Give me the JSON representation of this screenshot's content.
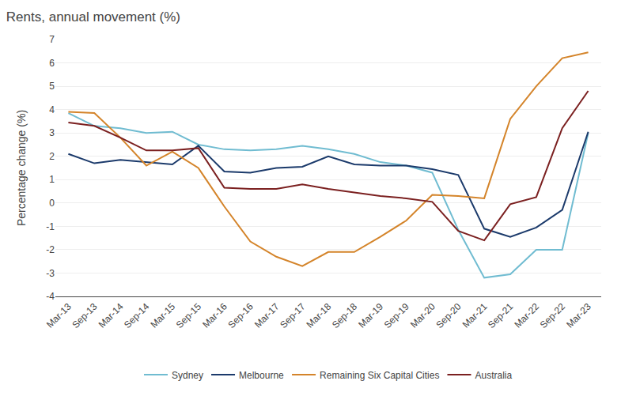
{
  "chart_data": {
    "type": "line",
    "title": "Rents, annual movement (%)",
    "ylabel": "Percentage change (%)",
    "categories": [
      "Mar-13",
      "Sep-13",
      "Mar-14",
      "Sep-14",
      "Mar-15",
      "Sep-15",
      "Mar-16",
      "Sep-16",
      "Mar-17",
      "Sep-17",
      "Mar-18",
      "Sep-18",
      "Mar-19",
      "Sep-19",
      "Mar-20",
      "Sep-20",
      "Mar-21",
      "Sep-21",
      "Mar-22",
      "Sep-22",
      "Mar-23"
    ],
    "series": [
      {
        "name": "Sydney",
        "color": "#70BCD1",
        "values": [
          3.85,
          3.3,
          3.2,
          3.0,
          3.05,
          2.5,
          2.3,
          2.25,
          2.3,
          2.45,
          2.3,
          2.1,
          1.75,
          1.6,
          1.3,
          -1.15,
          -3.2,
          -3.05,
          -2.0,
          -2.0,
          3.0
        ]
      },
      {
        "name": "Melbourne",
        "color": "#1B3A6B",
        "values": [
          2.1,
          1.7,
          1.85,
          1.75,
          1.65,
          2.45,
          1.35,
          1.3,
          1.5,
          1.55,
          2.0,
          1.65,
          1.6,
          1.6,
          1.45,
          1.2,
          -1.1,
          -1.45,
          -1.05,
          -0.3,
          3.05
        ]
      },
      {
        "name": "Remaining Six Capital Cities",
        "color": "#D4842A",
        "values": [
          3.9,
          3.85,
          2.8,
          1.6,
          2.2,
          1.5,
          -0.15,
          -1.65,
          -2.3,
          -2.7,
          -2.1,
          -2.1,
          -1.45,
          -0.75,
          0.35,
          0.3,
          0.2,
          3.6,
          5.0,
          6.2,
          6.45
        ]
      },
      {
        "name": "Australia",
        "color": "#7B2020",
        "values": [
          3.45,
          3.3,
          2.8,
          2.25,
          2.25,
          2.35,
          0.65,
          0.6,
          0.6,
          0.8,
          0.6,
          0.45,
          0.3,
          0.2,
          0.05,
          -1.2,
          -1.6,
          -0.05,
          0.25,
          3.2,
          4.8
        ]
      }
    ],
    "ylim": [
      -4,
      7
    ],
    "yticks": [
      -4,
      -3,
      -2,
      -1,
      0,
      1,
      2,
      3,
      4,
      5,
      6,
      7
    ],
    "grid": "y",
    "legend": "bottom"
  }
}
